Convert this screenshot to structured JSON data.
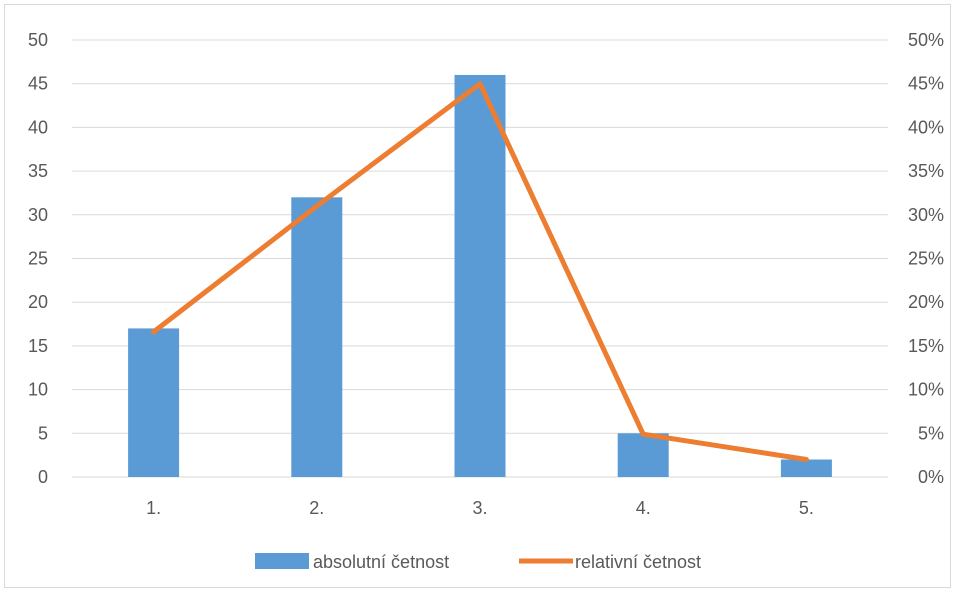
{
  "chart_data": {
    "type": "bar",
    "categories": [
      "1.",
      "2.",
      "3.",
      "4.",
      "5."
    ],
    "series": [
      {
        "name": "absolutní četnost",
        "type": "bar",
        "axis": "left",
        "values": [
          17,
          32,
          46,
          5,
          2
        ]
      },
      {
        "name": "relativní četnost",
        "type": "line",
        "axis": "right",
        "values": [
          0.166,
          0.31,
          0.45,
          0.049,
          0.02
        ]
      }
    ],
    "y_left": {
      "range": [
        0,
        50
      ],
      "ticks": [
        "0",
        "5",
        "10",
        "15",
        "20",
        "25",
        "30",
        "35",
        "40",
        "45",
        "50"
      ]
    },
    "y_right": {
      "range": [
        0,
        0.5
      ],
      "ticks": [
        "0%",
        "5%",
        "10%",
        "15%",
        "20%",
        "25%",
        "30%",
        "35%",
        "40%",
        "45%",
        "50%"
      ]
    },
    "grid": true,
    "legend": "bottom",
    "colors": {
      "bar": "#5b9bd5",
      "line": "#ed7d31",
      "grid": "#d9d9d9",
      "text": "#595959"
    }
  }
}
